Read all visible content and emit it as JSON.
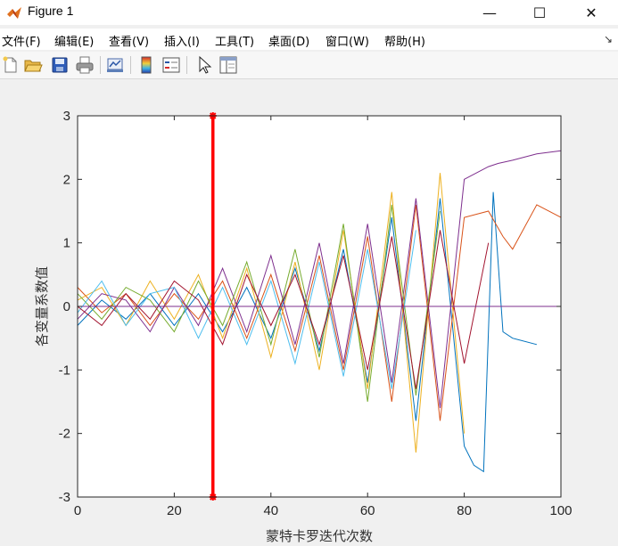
{
  "window": {
    "title": "Figure 1",
    "minimize_glyph": "—",
    "maximize_glyph": "☐",
    "close_glyph": "✕"
  },
  "menu": {
    "items": [
      "文件(F)",
      "编辑(E)",
      "查看(V)",
      "插入(I)",
      "工具(T)",
      "桌面(D)",
      "窗口(W)",
      "帮助(H)"
    ],
    "overflow_glyph": "↘"
  },
  "toolbar": {
    "icons": [
      "new-figure-icon",
      "open-file-icon",
      "save-icon",
      "print-icon",
      "link-plot-icon",
      "colorbar-icon",
      "legend-icon",
      "pointer-icon",
      "property-inspector-icon"
    ]
  },
  "chart_data": {
    "type": "line",
    "title": "",
    "xlabel": "蒙特卡罗迭代次数",
    "ylabel": "各变量系数值",
    "xlim": [
      0,
      100
    ],
    "ylim": [
      -3,
      3
    ],
    "xticks": [
      "0",
      "20",
      "40",
      "60",
      "80",
      "100"
    ],
    "yticks": [
      "-3",
      "-2",
      "-1",
      "0",
      "1",
      "2",
      "3"
    ],
    "grid": false,
    "legend": "none",
    "marker_line": {
      "x": 28,
      "y_range": [
        -3,
        3
      ],
      "color": "#ff0000"
    },
    "palette": [
      "#0072bd",
      "#d95319",
      "#edb120",
      "#7e2f8e",
      "#77ac30",
      "#4dbeee",
      "#a2142f"
    ],
    "series": [
      {
        "x": [
          0,
          5,
          10,
          15,
          20,
          25,
          30,
          35,
          40,
          45,
          50,
          55,
          60,
          65,
          70,
          75,
          80,
          82,
          84,
          86,
          88,
          90,
          95
        ],
        "values": [
          -0.3,
          0.1,
          -0.2,
          0.2,
          -0.3,
          0.2,
          -0.4,
          0.3,
          -0.5,
          0.6,
          -0.7,
          0.9,
          -1.2,
          1.4,
          -1.8,
          1.7,
          -2.2,
          -2.5,
          -2.6,
          1.8,
          -0.4,
          -0.5,
          -0.6
        ]
      },
      {
        "x": [
          0,
          5,
          10,
          15,
          20,
          25,
          30,
          35,
          40,
          45,
          50,
          55,
          60,
          65,
          70,
          75,
          80,
          85,
          88,
          90,
          95,
          100
        ],
        "values": [
          0.3,
          -0.1,
          0.2,
          -0.3,
          0.2,
          -0.2,
          0.4,
          -0.5,
          0.5,
          -0.7,
          0.8,
          -1.0,
          1.1,
          -1.5,
          1.6,
          -1.8,
          1.4,
          1.5,
          1.1,
          0.9,
          1.6,
          1.4
        ]
      },
      {
        "x": [
          0,
          5,
          10,
          15,
          20,
          25,
          30,
          35,
          40,
          45,
          50,
          55,
          60,
          65,
          70,
          75,
          80
        ],
        "values": [
          0.1,
          0.3,
          -0.3,
          0.4,
          -0.2,
          0.5,
          -0.5,
          0.6,
          -0.8,
          0.7,
          -1.0,
          1.2,
          -1.3,
          1.8,
          -2.3,
          2.1,
          -2.0
        ]
      },
      {
        "x": [
          0,
          5,
          10,
          15,
          20,
          25,
          30,
          35,
          40,
          45,
          50,
          55,
          60,
          65,
          70,
          75,
          80,
          85,
          87,
          90,
          95,
          100
        ],
        "values": [
          -0.2,
          0.2,
          0.1,
          -0.4,
          0.3,
          -0.3,
          0.6,
          -0.4,
          0.8,
          -0.6,
          1.0,
          -0.9,
          1.3,
          -1.2,
          1.7,
          -1.6,
          2.0,
          2.2,
          2.25,
          2.3,
          2.4,
          2.45
        ]
      },
      {
        "x": [
          0,
          5,
          10,
          15,
          20,
          25,
          30,
          35,
          40,
          45,
          50,
          55,
          60,
          65,
          70,
          75
        ],
        "values": [
          0.2,
          -0.2,
          0.3,
          0.1,
          -0.4,
          0.4,
          -0.3,
          0.7,
          -0.6,
          0.9,
          -0.8,
          1.3,
          -1.5,
          1.6,
          -1.4,
          1.5
        ]
      },
      {
        "x": [
          0,
          5,
          10,
          15,
          20,
          25,
          30,
          35,
          40,
          45,
          50,
          55,
          60,
          65,
          70
        ],
        "values": [
          -0.1,
          0.4,
          -0.3,
          0.2,
          0.3,
          -0.5,
          0.3,
          -0.6,
          0.4,
          -0.9,
          0.7,
          -1.1,
          0.9,
          -1.3,
          1.2
        ]
      },
      {
        "x": [
          0,
          5,
          10,
          15,
          20,
          25,
          30,
          35,
          40,
          45,
          50,
          55,
          60,
          65,
          70,
          75,
          80,
          85
        ],
        "values": [
          0.0,
          -0.3,
          0.2,
          -0.2,
          0.4,
          0.1,
          -0.6,
          0.5,
          -0.3,
          0.5,
          -0.6,
          0.8,
          -1.0,
          1.1,
          -1.3,
          1.2,
          -0.9,
          1.0
        ]
      }
    ]
  }
}
